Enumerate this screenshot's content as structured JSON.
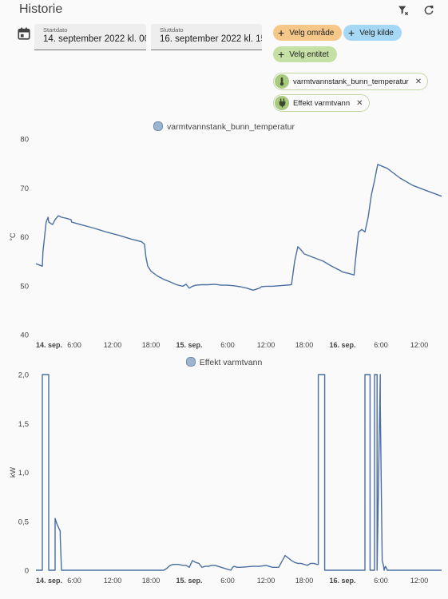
{
  "header": {
    "title": "Historie",
    "clear_icon": "filter-remove-icon",
    "refresh_icon": "refresh-icon"
  },
  "date_picker": {
    "icon": "calendar-icon",
    "start": {
      "label": "Startdato",
      "value": "14. september 2022 kl. 00:"
    },
    "end": {
      "label": "Sluttdato",
      "value": "16. september 2022 kl. 15:"
    }
  },
  "target_picker": {
    "area_label": "Velg område",
    "device_label": "Velg kilde",
    "entity_label": "Velg entitet",
    "area_color": "#f5c88a",
    "device_color": "#a5d8f5",
    "entity_color": "#c5e0a5",
    "selected": [
      {
        "name": "varmtvannstank_bunn_temperatur",
        "icon": "thermometer-icon"
      },
      {
        "name": "Effekt varmtvann",
        "icon": "power-plug-icon"
      }
    ]
  },
  "colors": {
    "line": "#4a6fa0"
  },
  "chart_data": [
    {
      "type": "line",
      "title": "",
      "legend": [
        "varmtvannstank_bunn_temperatur"
      ],
      "ylabel": "°C",
      "ylim": [
        40,
        80
      ],
      "yticks": [
        "80",
        "70",
        "60",
        "50",
        "40"
      ],
      "xlim": [
        0,
        63.5
      ],
      "xticks": [
        {
          "x": 0,
          "label": "14. sep.",
          "bold": true
        },
        {
          "x": 6,
          "label": "6:00"
        },
        {
          "x": 12,
          "label": "12:00"
        },
        {
          "x": 18,
          "label": "18:00"
        },
        {
          "x": 24,
          "label": "15. sep.",
          "bold": true
        },
        {
          "x": 30,
          "label": "6:00"
        },
        {
          "x": 36,
          "label": "12:00"
        },
        {
          "x": 42,
          "label": "18:00"
        },
        {
          "x": 48,
          "label": "16. sep.",
          "bold": true
        },
        {
          "x": 54,
          "label": "6:00"
        },
        {
          "x": 60,
          "label": "12:00"
        }
      ],
      "series": [
        {
          "x": [
            0,
            1,
            1.1,
            1.6,
            1.9,
            2,
            2.6,
            3,
            3.5,
            4,
            4.7,
            5.5,
            5.6,
            7,
            9,
            11,
            13,
            15,
            16.5,
            17,
            17.2,
            17.5,
            18,
            19,
            20,
            21,
            22,
            23,
            23.5,
            24,
            24.5,
            25,
            26,
            27,
            28,
            29,
            30,
            31,
            32,
            33,
            34,
            35,
            35.3,
            36,
            37,
            38,
            40,
            40.5,
            41,
            41.5,
            42,
            43,
            44,
            45,
            46,
            47,
            47.5,
            48,
            49,
            49.8,
            50,
            50.5,
            51,
            51.5,
            52,
            52.5,
            53,
            53.5,
            55,
            57,
            59,
            61,
            63.5
          ],
          "y": [
            54.5,
            54,
            57,
            63,
            64,
            63,
            62.5,
            63.5,
            64.3,
            64,
            63.8,
            63.5,
            63,
            62.5,
            61.8,
            61,
            60.3,
            59.5,
            59,
            58.5,
            56,
            54,
            53,
            52,
            51.3,
            50.8,
            50.2,
            49.9,
            50.3,
            49.5,
            49.9,
            50.1,
            50.2,
            50.2,
            50.3,
            50.1,
            50.1,
            50,
            49.8,
            49.5,
            49.1,
            49.5,
            49.8,
            49.9,
            49.9,
            50,
            50.2,
            55,
            58,
            57.3,
            56.5,
            56,
            55.5,
            55,
            54.2,
            53.5,
            53.2,
            52.8,
            52.5,
            52.2,
            55,
            61,
            61.5,
            61,
            64,
            68.5,
            71.5,
            74.8,
            74,
            72,
            70.5,
            69.5,
            68.3
          ]
        }
      ]
    },
    {
      "type": "line",
      "title": "",
      "legend": [
        "Effekt varmtvann"
      ],
      "ylabel": "kW",
      "ylim": [
        0,
        2
      ],
      "yticks": [
        "2,0",
        "1,5",
        "1,0",
        "0,5",
        "0"
      ],
      "xlim": [
        0,
        63.5
      ],
      "xticks": [
        {
          "x": 0,
          "label": "14. sep.",
          "bold": true
        },
        {
          "x": 6,
          "label": "6:00"
        },
        {
          "x": 12,
          "label": "12:00"
        },
        {
          "x": 18,
          "label": "18:00"
        },
        {
          "x": 24,
          "label": "15. sep.",
          "bold": true
        },
        {
          "x": 30,
          "label": "6:00"
        },
        {
          "x": 36,
          "label": "12:00"
        },
        {
          "x": 42,
          "label": "18:00"
        },
        {
          "x": 48,
          "label": "16. sep.",
          "bold": true
        },
        {
          "x": 54,
          "label": "6:00"
        },
        {
          "x": 60,
          "label": "12:00"
        }
      ],
      "series": [
        {
          "x": [
            0,
            1,
            1,
            2,
            2,
            3,
            3,
            3.3,
            3.8,
            3.8,
            4,
            5,
            10,
            15,
            20,
            20.5,
            21,
            21.5,
            22,
            22.3,
            23,
            23.5,
            24,
            24.5,
            25,
            25.5,
            26,
            26.5,
            27,
            27.5,
            28,
            28.5,
            29,
            29.5,
            30,
            30.5,
            30.8,
            31,
            31.5,
            32,
            34,
            35,
            36,
            36.5,
            37,
            38,
            39,
            40,
            40.5,
            41,
            41.5,
            42,
            42.5,
            43,
            43.5,
            44,
            44.2,
            44.2,
            45.2,
            45.2,
            47,
            48,
            50,
            51.5,
            51.5,
            52.3,
            52.3,
            53,
            53,
            53.4,
            53.4,
            53.9,
            53.9,
            53.9,
            54.2,
            54.4,
            54.5,
            54.7,
            54.9,
            55,
            56,
            60,
            63.5
          ],
          "y": [
            0,
            0,
            2,
            2,
            0,
            0,
            0.53,
            0.47,
            0.4,
            0.35,
            0,
            0,
            0,
            0,
            0,
            0.02,
            0.05,
            0.06,
            0.06,
            0.06,
            0.05,
            0.05,
            0.03,
            0.1,
            0.08,
            0.07,
            0.03,
            0.04,
            0.04,
            0.05,
            0.05,
            0.04,
            0.03,
            0.02,
            0.01,
            0,
            0.03,
            0.04,
            0.03,
            0.03,
            0.04,
            0.04,
            0.05,
            0.04,
            0.03,
            0.03,
            0.15,
            0.1,
            0.08,
            0.07,
            0.07,
            0.06,
            0.05,
            0.07,
            0.07,
            0.06,
            0.06,
            2,
            2,
            0,
            0,
            0,
            0,
            0,
            2,
            2,
            0,
            0,
            2,
            2,
            0,
            2,
            2,
            1.7,
            0.1,
            0.05,
            0,
            0.04,
            0.02,
            0,
            0,
            0,
            0
          ]
        }
      ]
    }
  ]
}
